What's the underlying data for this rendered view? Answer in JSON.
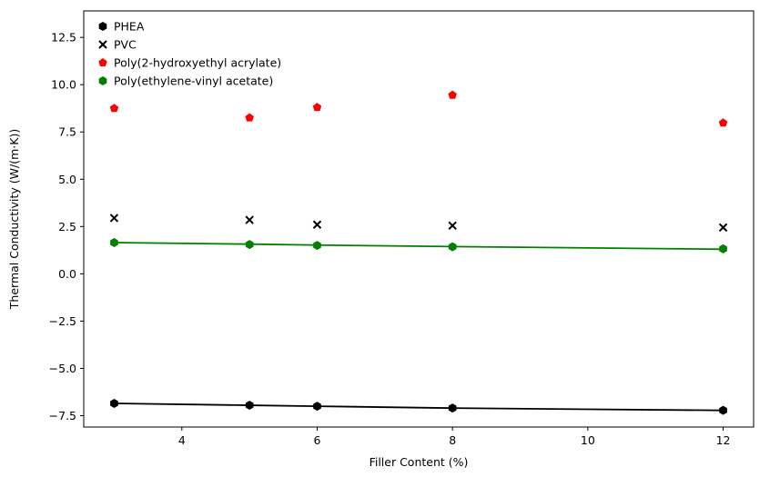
{
  "chart_data": {
    "type": "scatter",
    "title": "",
    "xlabel": "Filler Content (%)",
    "ylabel": "Thermal Conductivity (W/(m·K))",
    "xlim": [
      2.55,
      12.45
    ],
    "ylim": [
      -8.1,
      13.9
    ],
    "xticks": [
      4,
      6,
      8,
      10,
      12
    ],
    "yticks": [
      -7.5,
      -5.0,
      -2.5,
      0.0,
      2.5,
      5.0,
      7.5,
      10.0,
      12.5
    ],
    "xtick_labels": [
      "4",
      "6",
      "8",
      "10",
      "12"
    ],
    "ytick_labels": [
      "−7.5",
      "−5.0",
      "−2.5",
      "0.0",
      "2.5",
      "5.0",
      "7.5",
      "10.0",
      "12.5"
    ],
    "grid": false,
    "legend_position": "upper-left",
    "x": [
      3,
      5,
      6,
      8,
      12
    ],
    "series": [
      {
        "name": "PHEA",
        "marker": "hexagon",
        "color": "#000000",
        "values": [
          -6.85,
          -6.95,
          -7.0,
          -7.1,
          -7.22
        ],
        "trend": [
          -6.85,
          -6.95,
          -7.0,
          -7.1,
          -7.22
        ]
      },
      {
        "name": "PVC",
        "marker": "x",
        "color": "#000000",
        "values": [
          2.95,
          2.85,
          2.6,
          2.55,
          2.45
        ]
      },
      {
        "name": "Poly(2-hydroxyethyl acrylate)",
        "marker": "pentagon",
        "color": "#ff0000",
        "values": [
          8.75,
          8.25,
          8.8,
          9.45,
          7.98
        ]
      },
      {
        "name": "Poly(ethylene-vinyl acetate)",
        "marker": "hexagon",
        "color": "#008000",
        "values": [
          1.65,
          1.55,
          1.5,
          1.43,
          1.32
        ],
        "trend": [
          1.65,
          1.57,
          1.52,
          1.44,
          1.3
        ]
      }
    ]
  }
}
